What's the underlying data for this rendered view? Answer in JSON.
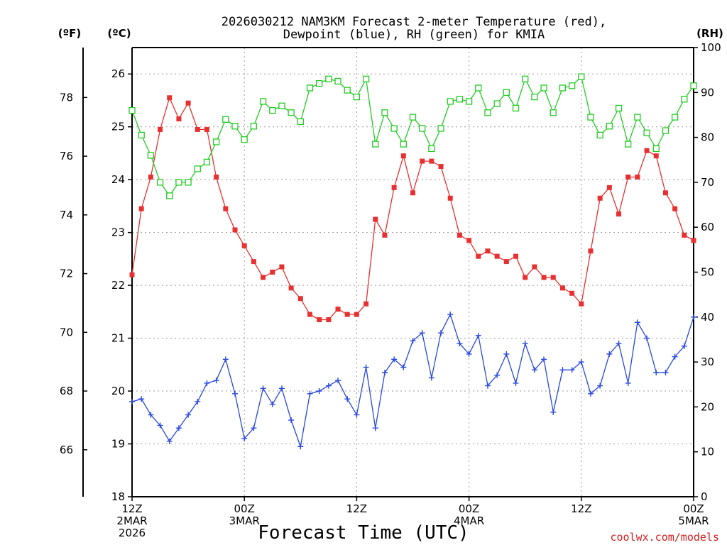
{
  "header": {
    "title_line1": "2026030212 NAM3KM Forecast 2-meter Temperature (red),",
    "title_line2": "Dewpoint (blue), RH (green) for KMIA",
    "unit_f": "(ºF)",
    "unit_c": "(ºC)",
    "unit_rh": "(RH)"
  },
  "footer": {
    "x_title": "Forecast Time (UTC)",
    "credit": "coolwx.com/models"
  },
  "chart_data": {
    "type": "line",
    "title": "2026030212 NAM3KM Forecast 2-meter Temperature (red), Dewpoint (blue), RH (green) for KMIA",
    "xlabel": "Forecast Time (UTC)",
    "x_hours_range": [
      0,
      60
    ],
    "x_step_hours": 1,
    "x_ticks": [
      {
        "hour": 0,
        "lines": [
          "12Z",
          "2MAR",
          "2026"
        ]
      },
      {
        "hour": 12,
        "lines": [
          "00Z",
          "3MAR"
        ]
      },
      {
        "hour": 24,
        "lines": [
          "12Z"
        ]
      },
      {
        "hour": 36,
        "lines": [
          "00Z",
          "4MAR"
        ]
      },
      {
        "hour": 48,
        "lines": [
          "12Z"
        ]
      },
      {
        "hour": 60,
        "lines": [
          "00Z",
          "5MAR"
        ]
      }
    ],
    "y_celsius": {
      "label": "(ºC)",
      "range": [
        18,
        26.5
      ],
      "ticks": [
        "18",
        "19",
        "20",
        "21",
        "22",
        "23",
        "24",
        "25",
        "26"
      ]
    },
    "y_fahrenheit": {
      "label": "(ºF)",
      "ticks": [
        "66",
        "68",
        "70",
        "72",
        "74",
        "76",
        "78"
      ]
    },
    "y_rh": {
      "label": "(RH)",
      "range": [
        0,
        100
      ],
      "ticks": [
        "0",
        "10",
        "20",
        "30",
        "40",
        "50",
        "60",
        "70",
        "80",
        "90",
        "100"
      ]
    },
    "grid": true,
    "series": [
      {
        "name": "Temperature",
        "axis": "celsius",
        "color": "#e83030",
        "marker": "filled-square",
        "values": [
          22.2,
          23.45,
          24.05,
          24.95,
          25.55,
          25.15,
          25.45,
          24.95,
          24.95,
          24.05,
          23.45,
          23.05,
          22.75,
          22.45,
          22.15,
          22.25,
          22.35,
          21.95,
          21.75,
          21.45,
          21.35,
          21.35,
          21.55,
          21.45,
          21.45,
          21.65,
          23.25,
          22.95,
          23.85,
          24.45,
          23.75,
          24.35,
          24.35,
          24.25,
          23.65,
          22.95,
          22.85,
          22.55,
          22.65,
          22.55,
          22.45,
          22.55,
          22.15,
          22.35,
          22.15,
          22.15,
          21.95,
          21.85,
          21.65,
          22.65,
          23.65,
          23.85,
          23.35,
          24.05,
          24.05,
          24.55,
          24.45,
          23.75,
          23.45,
          22.95,
          22.85
        ]
      },
      {
        "name": "Dewpoint",
        "axis": "celsius",
        "color": "#2848e0",
        "marker": "plus",
        "values": [
          19.8,
          19.85,
          19.55,
          19.35,
          19.05,
          19.3,
          19.55,
          19.8,
          20.15,
          20.2,
          20.6,
          19.95,
          19.1,
          19.3,
          20.05,
          19.75,
          20.05,
          19.45,
          18.95,
          19.95,
          20.0,
          20.1,
          20.2,
          19.85,
          19.55,
          20.45,
          19.3,
          20.35,
          20.6,
          20.45,
          20.95,
          21.1,
          20.25,
          21.1,
          21.45,
          20.9,
          20.7,
          21.05,
          20.1,
          20.3,
          20.7,
          20.15,
          20.9,
          20.4,
          20.6,
          19.6,
          20.4,
          20.4,
          20.55,
          19.95,
          20.1,
          20.7,
          20.9,
          20.15,
          21.3,
          21.0,
          20.35,
          20.35,
          20.65,
          20.85,
          21.4
        ]
      },
      {
        "name": "RH",
        "axis": "rh",
        "color": "#22cc22",
        "marker": "open-square",
        "values": [
          86,
          80.5,
          76,
          70,
          67,
          70,
          70,
          73,
          74.5,
          79,
          84,
          82.5,
          79.5,
          82.5,
          88,
          86,
          87,
          85.5,
          83.5,
          91,
          92,
          93,
          92.5,
          90.5,
          89,
          93,
          78.5,
          85.5,
          82,
          78.5,
          84.5,
          82,
          77.5,
          82,
          88,
          88.5,
          88,
          91,
          85.5,
          87.5,
          90,
          86.5,
          93,
          89,
          91,
          85.5,
          91,
          91.5,
          93.5,
          84.5,
          80.5,
          82.5,
          86.5,
          78.5,
          84.5,
          81,
          77.5,
          81.5,
          84.5,
          88.5,
          91.5
        ]
      }
    ]
  }
}
